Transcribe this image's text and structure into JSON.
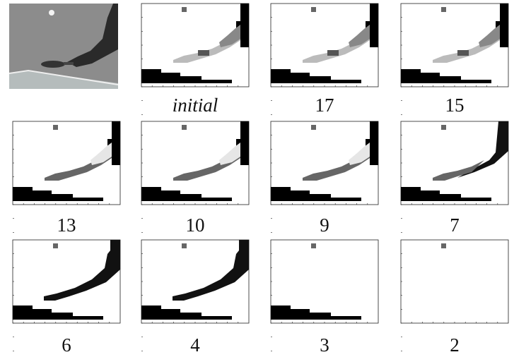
{
  "figure": {
    "labels": [
      "initial",
      "17",
      "15",
      "13",
      "10",
      "9",
      "7",
      "6",
      "4",
      "3",
      "2"
    ]
  }
}
